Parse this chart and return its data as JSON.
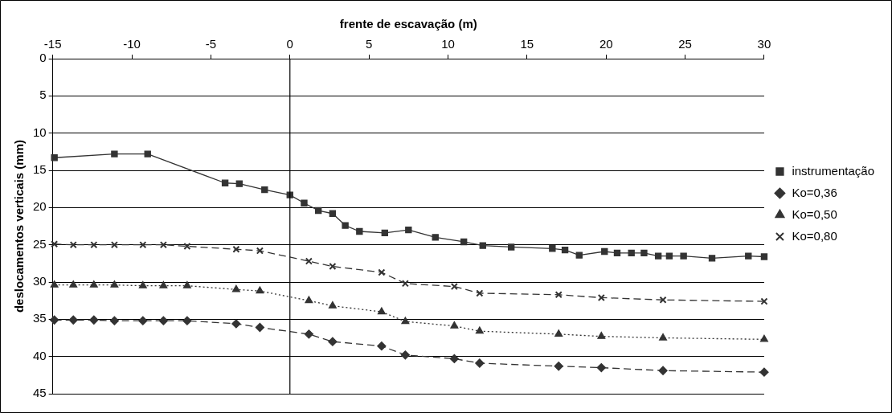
{
  "chart_data": {
    "type": "line",
    "xlabel": "frente de escavação (m)",
    "ylabel": "deslocamentos verticais (mm)",
    "xlim": [
      -15,
      30
    ],
    "xticks": [
      -15,
      -10,
      -5,
      0,
      5,
      10,
      15,
      20,
      25,
      30
    ],
    "ylim": [
      45,
      0
    ],
    "yticks": [
      0,
      5,
      10,
      15,
      20,
      25,
      30,
      35,
      40,
      45
    ],
    "grid": "y",
    "legend": "right",
    "ref_lines": [
      {
        "axis": "x",
        "value": 0,
        "color": "#000000"
      }
    ],
    "series": [
      {
        "name": "instrumentação",
        "color": "#333333",
        "marker": "square",
        "line_style": "solid",
        "x": [
          -14.9,
          -11.1,
          -9.0,
          -4.1,
          -3.2,
          -1.6,
          0.0,
          0.9,
          1.8,
          2.7,
          3.5,
          4.4,
          6.0,
          7.5,
          9.2,
          11.0,
          12.2,
          14.0,
          16.6,
          17.4,
          18.3,
          19.9,
          20.7,
          21.6,
          22.4,
          23.3,
          24.0,
          24.9,
          26.7,
          29.0,
          30.0
        ],
        "values": [
          13.3,
          12.8,
          12.8,
          16.7,
          16.8,
          17.6,
          18.3,
          19.4,
          20.4,
          20.8,
          22.4,
          23.2,
          23.4,
          23.0,
          24.0,
          24.6,
          25.1,
          25.3,
          25.5,
          25.7,
          26.4,
          25.9,
          26.1,
          26.1,
          26.1,
          26.5,
          26.5,
          26.5,
          26.8,
          26.5,
          26.6
        ]
      },
      {
        "name": "Ko=0,36",
        "color": "#333333",
        "marker": "diamond",
        "line_style": "dashed",
        "x": [
          -14.9,
          -13.7,
          -12.4,
          -11.1,
          -9.3,
          -8.0,
          -6.5,
          -3.4,
          -1.9,
          1.2,
          2.7,
          5.8,
          7.3,
          10.4,
          12.0,
          17.0,
          19.7,
          23.6,
          30.0
        ],
        "values": [
          35.1,
          35.1,
          35.1,
          35.2,
          35.2,
          35.2,
          35.2,
          35.6,
          36.1,
          37.0,
          38.0,
          38.6,
          39.8,
          40.3,
          40.9,
          41.3,
          41.5,
          41.9,
          42.1
        ]
      },
      {
        "name": "Ko=0,50",
        "color": "#333333",
        "marker": "triangle",
        "line_style": "dotted",
        "x": [
          -14.9,
          -13.7,
          -12.4,
          -11.1,
          -9.3,
          -8.0,
          -6.5,
          -3.4,
          -1.9,
          1.2,
          2.7,
          5.8,
          7.3,
          10.4,
          12.0,
          17.0,
          19.7,
          23.6,
          30.0
        ],
        "values": [
          30.4,
          30.4,
          30.4,
          30.4,
          30.5,
          30.5,
          30.5,
          31.0,
          31.2,
          32.5,
          33.2,
          34.0,
          35.3,
          35.9,
          36.6,
          37.0,
          37.3,
          37.5,
          37.7
        ]
      },
      {
        "name": "Ko=0,80",
        "color": "#333333",
        "marker": "cross",
        "line_style": "dashed",
        "x": [
          -14.9,
          -13.7,
          -12.4,
          -11.1,
          -9.3,
          -8.0,
          -6.5,
          -3.4,
          -1.9,
          1.2,
          2.7,
          5.8,
          7.3,
          10.4,
          12.0,
          17.0,
          19.7,
          23.6,
          30.0
        ],
        "values": [
          24.9,
          25.0,
          25.0,
          25.0,
          25.0,
          25.0,
          25.2,
          25.6,
          25.8,
          27.2,
          27.9,
          28.7,
          30.2,
          30.6,
          31.5,
          31.7,
          32.1,
          32.4,
          32.6
        ]
      }
    ]
  }
}
